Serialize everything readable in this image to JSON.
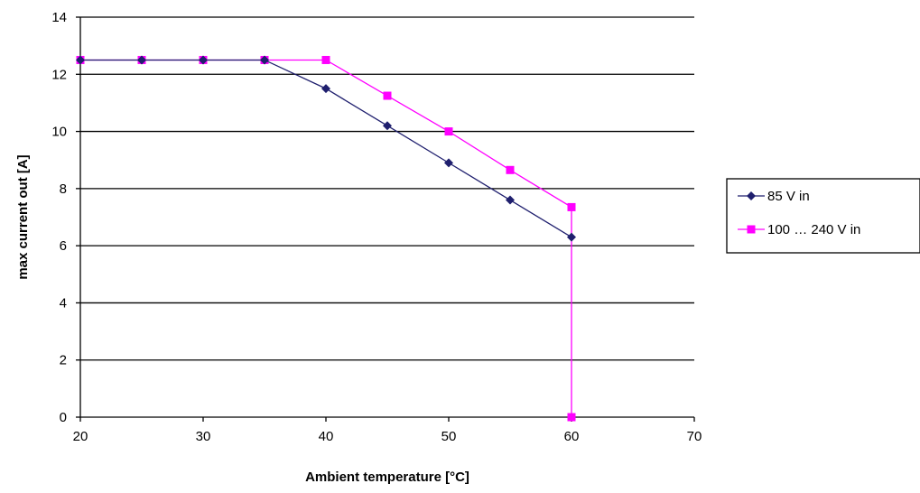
{
  "chart_data": {
    "type": "line",
    "title": "",
    "xlabel": "Ambient temperature [°C]",
    "ylabel": "max current out [A]",
    "xlim": [
      20,
      70
    ],
    "ylim": [
      0,
      14
    ],
    "xticks": [
      20,
      30,
      40,
      50,
      60,
      70
    ],
    "yticks": [
      0,
      2,
      4,
      6,
      8,
      10,
      12,
      14
    ],
    "grid": "horizontal",
    "legend_position": "right",
    "series": [
      {
        "name": "85 V in",
        "color": "#1f1f6e",
        "marker": "diamond",
        "x": [
          20,
          25,
          30,
          35,
          40,
          45,
          50,
          55,
          60
        ],
        "y": [
          12.5,
          12.5,
          12.5,
          12.5,
          11.5,
          10.2,
          8.9,
          7.6,
          6.3
        ]
      },
      {
        "name": "100 … 240 V in",
        "color": "#ff00ff",
        "marker": "square",
        "x": [
          20,
          25,
          30,
          35,
          40,
          45,
          50,
          55,
          60,
          60
        ],
        "y": [
          12.5,
          12.5,
          12.5,
          12.5,
          12.5,
          11.25,
          10.0,
          8.65,
          7.35,
          0
        ]
      }
    ]
  }
}
